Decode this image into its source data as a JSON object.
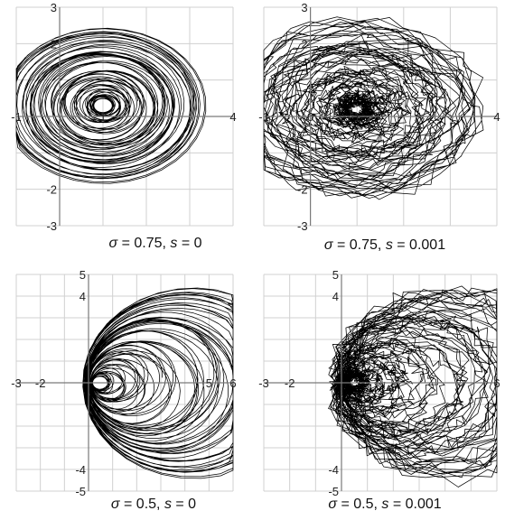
{
  "chart_data": [
    {
      "type": "line",
      "caption": {
        "sym": "σ",
        "eq1": " = 0.75, ",
        "svar": "s",
        "eq2": " = 0"
      },
      "sigma": 0.75,
      "s": 0,
      "xlim": [
        -1,
        4
      ],
      "ylim": [
        -3,
        3
      ],
      "xticks": [
        -1,
        0,
        1,
        2,
        3,
        4
      ],
      "yticks": [
        -3,
        -2,
        -1,
        0,
        1,
        2,
        3
      ],
      "xtick_labels": [
        "-1",
        "",
        "1",
        "",
        "",
        "4"
      ],
      "ytick_labels": [
        "-3",
        "-2",
        "",
        "",
        "",
        "2",
        "3"
      ],
      "grid": true,
      "series": [
        {
          "trajectory": "spiral cloud around (1.0, 0.3), radius 0.2–2.3",
          "center": [
            1.0,
            0.3
          ],
          "radius_range": [
            0.2,
            2.3
          ],
          "jitter": 0
        }
      ]
    },
    {
      "type": "line",
      "caption": {
        "sym": "σ",
        "eq1": " = 0.75, ",
        "svar": "s",
        "eq2": " = 0.001"
      },
      "sigma": 0.75,
      "s": 0.001,
      "xlim": [
        -1,
        4
      ],
      "ylim": [
        -3,
        3
      ],
      "xticks": [
        -1,
        0,
        1,
        2,
        3,
        4
      ],
      "yticks": [
        -3,
        -2,
        -1,
        0,
        1,
        2,
        3
      ],
      "xtick_labels": [
        "-1",
        "0",
        "1",
        "",
        "",
        "4"
      ],
      "ytick_labels": [
        "-3",
        "-2",
        "",
        "",
        "",
        "2",
        "3"
      ],
      "grid": true,
      "series": [
        {
          "trajectory": "noisy spiral cloud around (1.0, 0.2), radius 0.2–2.6",
          "center": [
            1.0,
            0.2
          ],
          "radius_range": [
            0.2,
            2.6
          ],
          "jitter": 0.12
        }
      ]
    },
    {
      "type": "line",
      "caption": {
        "sym": "σ",
        "eq1": " = 0.5, ",
        "svar": "s",
        "eq2": " = 0"
      },
      "sigma": 0.5,
      "s": 0,
      "xlim": [
        -3,
        6
      ],
      "ylim": [
        -5,
        5
      ],
      "xticks": [
        -3,
        -2,
        -1,
        0,
        1,
        2,
        3,
        4,
        5,
        6
      ],
      "yticks": [
        -5,
        -4,
        -3,
        -2,
        -1,
        0,
        1,
        2,
        3,
        4,
        5
      ],
      "xtick_labels": [
        "-3",
        "-2",
        "",
        "",
        "",
        "",
        "",
        "",
        "5",
        "6"
      ],
      "ytick_labels": [
        "-5",
        "-4",
        "",
        "",
        "",
        "",
        "",
        "",
        "",
        "4",
        "5"
      ],
      "grid": true,
      "series": [
        {
          "trajectory": "spiral cloud tangent near (0, 0), spreading to radius ~4.6",
          "center": [
            1.3,
            0.0
          ],
          "radius_range": [
            0.3,
            4.6
          ],
          "jitter": 0
        }
      ]
    },
    {
      "type": "line",
      "caption": {
        "sym": "σ",
        "eq1": " = 0.5, ",
        "svar": "s",
        "eq2": " = 0.001"
      },
      "sigma": 0.5,
      "s": 0.001,
      "xlim": [
        -3,
        6
      ],
      "ylim": [
        -5,
        5
      ],
      "xticks": [
        -3,
        -2,
        -1,
        0,
        1,
        2,
        3,
        4,
        5,
        6
      ],
      "yticks": [
        -5,
        -4,
        -3,
        -2,
        -1,
        0,
        1,
        2,
        3,
        4,
        5
      ],
      "xtick_labels": [
        "-3",
        "-2",
        "",
        "",
        "",
        "",
        "",
        "",
        "",
        "6"
      ],
      "ytick_labels": [
        "-5",
        "-4",
        "",
        "",
        "",
        "",
        "",
        "",
        "",
        "4",
        "5"
      ],
      "grid": true,
      "series": [
        {
          "trajectory": "noisy spiral cloud near (0, 0), spreading to radius ~4.6",
          "center": [
            1.3,
            0.0
          ],
          "radius_range": [
            0.3,
            4.6
          ],
          "jitter": 0.18
        }
      ]
    }
  ]
}
